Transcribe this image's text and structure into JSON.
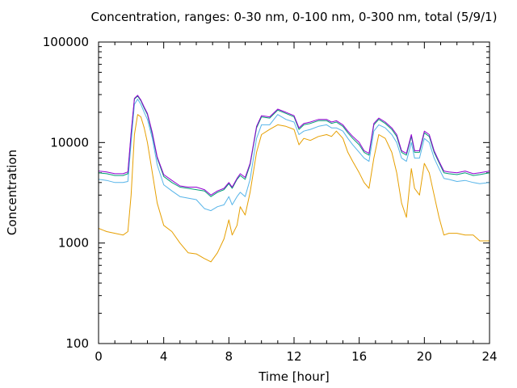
{
  "chart_data": {
    "type": "line",
    "title": "Concentration, ranges: 0-30 nm, 0-100 nm, 0-300 nm, total (5/9/1)",
    "xlabel": "Time [hour]",
    "ylabel": "Concentration",
    "xlim": [
      0,
      24
    ],
    "ylim": [
      100,
      100000
    ],
    "yscale": "log",
    "xticks": [
      "0",
      "4",
      "8",
      "12",
      "16",
      "20",
      "24"
    ],
    "yticks": [
      "100",
      "1000",
      "10000",
      "100000"
    ],
    "grid": false,
    "legend": "none",
    "series": [
      {
        "color": "#e69f00",
        "points": [
          [
            0,
            1400
          ],
          [
            0.5,
            1300
          ],
          [
            1,
            1250
          ],
          [
            1.5,
            1200
          ],
          [
            1.8,
            1300
          ],
          [
            2,
            3000
          ],
          [
            2.2,
            12000
          ],
          [
            2.4,
            19000
          ],
          [
            2.6,
            18000
          ],
          [
            2.8,
            14000
          ],
          [
            3,
            10000
          ],
          [
            3.3,
            5000
          ],
          [
            3.6,
            2500
          ],
          [
            4,
            1500
          ],
          [
            4.5,
            1300
          ],
          [
            5,
            1000
          ],
          [
            5.5,
            800
          ],
          [
            6,
            780
          ],
          [
            6.5,
            700
          ],
          [
            6.9,
            650
          ],
          [
            7.3,
            800
          ],
          [
            7.7,
            1100
          ],
          [
            8,
            1700
          ],
          [
            8.2,
            1200
          ],
          [
            8.5,
            1500
          ],
          [
            8.7,
            2300
          ],
          [
            9,
            1900
          ],
          [
            9.3,
            3200
          ],
          [
            9.7,
            8000
          ],
          [
            10,
            12000
          ],
          [
            10.5,
            13500
          ],
          [
            11,
            15000
          ],
          [
            11.5,
            14500
          ],
          [
            12,
            13500
          ],
          [
            12.3,
            9500
          ],
          [
            12.6,
            11000
          ],
          [
            13,
            10500
          ],
          [
            13.5,
            11500
          ],
          [
            14,
            12000
          ],
          [
            14.3,
            11500
          ],
          [
            14.6,
            13000
          ],
          [
            15,
            11000
          ],
          [
            15.3,
            8000
          ],
          [
            15.6,
            6500
          ],
          [
            16,
            5000
          ],
          [
            16.3,
            4000
          ],
          [
            16.6,
            3500
          ],
          [
            16.9,
            7000
          ],
          [
            17.2,
            12000
          ],
          [
            17.6,
            11000
          ],
          [
            18,
            8000
          ],
          [
            18.3,
            5000
          ],
          [
            18.6,
            2500
          ],
          [
            18.9,
            1800
          ],
          [
            19.2,
            5500
          ],
          [
            19.4,
            3500
          ],
          [
            19.7,
            3000
          ],
          [
            20,
            6200
          ],
          [
            20.3,
            5000
          ],
          [
            20.6,
            3000
          ],
          [
            20.9,
            1800
          ],
          [
            21.2,
            1200
          ],
          [
            21.5,
            1250
          ],
          [
            22,
            1250
          ],
          [
            22.5,
            1200
          ],
          [
            23,
            1200
          ],
          [
            23.4,
            1050
          ],
          [
            24,
            1050
          ]
        ]
      },
      {
        "color": "#56b4e9",
        "points": [
          [
            0,
            4300
          ],
          [
            0.5,
            4200
          ],
          [
            1,
            4000
          ],
          [
            1.5,
            4000
          ],
          [
            1.8,
            4100
          ],
          [
            2,
            10000
          ],
          [
            2.2,
            24000
          ],
          [
            2.4,
            27000
          ],
          [
            2.6,
            24000
          ],
          [
            2.8,
            20000
          ],
          [
            3,
            17000
          ],
          [
            3.3,
            11000
          ],
          [
            3.6,
            6000
          ],
          [
            4,
            3800
          ],
          [
            4.5,
            3300
          ],
          [
            5,
            2900
          ],
          [
            5.5,
            2800
          ],
          [
            6,
            2700
          ],
          [
            6.5,
            2200
          ],
          [
            6.9,
            2100
          ],
          [
            7.3,
            2300
          ],
          [
            7.7,
            2400
          ],
          [
            8,
            2900
          ],
          [
            8.2,
            2400
          ],
          [
            8.5,
            2900
          ],
          [
            8.7,
            3200
          ],
          [
            9,
            2900
          ],
          [
            9.3,
            4300
          ],
          [
            9.7,
            11000
          ],
          [
            10,
            15000
          ],
          [
            10.5,
            15000
          ],
          [
            11,
            19000
          ],
          [
            11.5,
            17000
          ],
          [
            12,
            16000
          ],
          [
            12.3,
            12000
          ],
          [
            12.6,
            13000
          ],
          [
            13,
            13500
          ],
          [
            13.5,
            14500
          ],
          [
            14,
            15000
          ],
          [
            14.3,
            14000
          ],
          [
            14.6,
            14000
          ],
          [
            15,
            13000
          ],
          [
            15.3,
            11000
          ],
          [
            15.6,
            9500
          ],
          [
            16,
            8000
          ],
          [
            16.3,
            7000
          ],
          [
            16.6,
            6500
          ],
          [
            16.9,
            13000
          ],
          [
            17.2,
            15000
          ],
          [
            17.6,
            14000
          ],
          [
            18,
            12000
          ],
          [
            18.3,
            10000
          ],
          [
            18.6,
            7000
          ],
          [
            18.9,
            6500
          ],
          [
            19.2,
            10000
          ],
          [
            19.4,
            7000
          ],
          [
            19.7,
            7000
          ],
          [
            20,
            11000
          ],
          [
            20.3,
            10000
          ],
          [
            20.6,
            7000
          ],
          [
            20.9,
            5500
          ],
          [
            21.2,
            4400
          ],
          [
            21.5,
            4300
          ],
          [
            22,
            4100
          ],
          [
            22.5,
            4200
          ],
          [
            23,
            4000
          ],
          [
            23.4,
            3900
          ],
          [
            24,
            4000
          ]
        ]
      },
      {
        "color": "#009e73",
        "points": [
          [
            0,
            5000
          ],
          [
            0.5,
            4900
          ],
          [
            1,
            4700
          ],
          [
            1.5,
            4700
          ],
          [
            1.8,
            4900
          ],
          [
            2,
            12000
          ],
          [
            2.2,
            27000
          ],
          [
            2.4,
            29000
          ],
          [
            2.6,
            26000
          ],
          [
            2.8,
            22000
          ],
          [
            3,
            19000
          ],
          [
            3.3,
            12000
          ],
          [
            3.6,
            7000
          ],
          [
            4,
            4600
          ],
          [
            4.5,
            4000
          ],
          [
            5,
            3600
          ],
          [
            5.5,
            3500
          ],
          [
            6,
            3400
          ],
          [
            6.5,
            3300
          ],
          [
            6.9,
            2900
          ],
          [
            7.3,
            3200
          ],
          [
            7.7,
            3400
          ],
          [
            8,
            3900
          ],
          [
            8.2,
            3500
          ],
          [
            8.5,
            4300
          ],
          [
            8.7,
            4700
          ],
          [
            9,
            4300
          ],
          [
            9.3,
            6000
          ],
          [
            9.7,
            14000
          ],
          [
            10,
            18000
          ],
          [
            10.5,
            17500
          ],
          [
            11,
            21000
          ],
          [
            11.5,
            19500
          ],
          [
            12,
            18000
          ],
          [
            12.3,
            13500
          ],
          [
            12.6,
            15000
          ],
          [
            13,
            15500
          ],
          [
            13.5,
            16500
          ],
          [
            14,
            16500
          ],
          [
            14.3,
            15500
          ],
          [
            14.6,
            16000
          ],
          [
            15,
            14500
          ],
          [
            15.3,
            12500
          ],
          [
            15.6,
            11000
          ],
          [
            16,
            9500
          ],
          [
            16.3,
            8000
          ],
          [
            16.6,
            7500
          ],
          [
            16.9,
            15000
          ],
          [
            17.2,
            17000
          ],
          [
            17.6,
            15500
          ],
          [
            18,
            13500
          ],
          [
            18.3,
            11500
          ],
          [
            18.6,
            8000
          ],
          [
            18.9,
            7500
          ],
          [
            19.2,
            11500
          ],
          [
            19.4,
            8000
          ],
          [
            19.7,
            8000
          ],
          [
            20,
            12500
          ],
          [
            20.3,
            11500
          ],
          [
            20.6,
            8000
          ],
          [
            20.9,
            6300
          ],
          [
            21.2,
            5000
          ],
          [
            21.5,
            4900
          ],
          [
            22,
            4800
          ],
          [
            22.5,
            5000
          ],
          [
            23,
            4700
          ],
          [
            23.4,
            4800
          ],
          [
            24,
            5000
          ]
        ]
      },
      {
        "color": "#9400d3",
        "points": [
          [
            0,
            5200
          ],
          [
            0.5,
            5100
          ],
          [
            1,
            4900
          ],
          [
            1.5,
            4900
          ],
          [
            1.8,
            5100
          ],
          [
            2,
            12500
          ],
          [
            2.2,
            27500
          ],
          [
            2.4,
            29500
          ],
          [
            2.6,
            26500
          ],
          [
            2.8,
            22500
          ],
          [
            3,
            19500
          ],
          [
            3.3,
            12500
          ],
          [
            3.6,
            7200
          ],
          [
            4,
            4800
          ],
          [
            4.5,
            4200
          ],
          [
            5,
            3700
          ],
          [
            5.5,
            3600
          ],
          [
            6,
            3600
          ],
          [
            6.5,
            3400
          ],
          [
            6.9,
            3000
          ],
          [
            7.3,
            3300
          ],
          [
            7.7,
            3500
          ],
          [
            8,
            4000
          ],
          [
            8.2,
            3600
          ],
          [
            8.5,
            4400
          ],
          [
            8.7,
            4900
          ],
          [
            9,
            4500
          ],
          [
            9.3,
            6200
          ],
          [
            9.7,
            14500
          ],
          [
            10,
            18500
          ],
          [
            10.5,
            18000
          ],
          [
            11,
            21500
          ],
          [
            11.5,
            20000
          ],
          [
            12,
            18500
          ],
          [
            12.3,
            14000
          ],
          [
            12.6,
            15500
          ],
          [
            13,
            16000
          ],
          [
            13.5,
            17000
          ],
          [
            14,
            17000
          ],
          [
            14.3,
            16000
          ],
          [
            14.6,
            16500
          ],
          [
            15,
            15000
          ],
          [
            15.3,
            13000
          ],
          [
            15.6,
            11500
          ],
          [
            16,
            10000
          ],
          [
            16.3,
            8300
          ],
          [
            16.6,
            7800
          ],
          [
            16.9,
            15500
          ],
          [
            17.2,
            17500
          ],
          [
            17.6,
            16000
          ],
          [
            18,
            14000
          ],
          [
            18.3,
            12000
          ],
          [
            18.6,
            8300
          ],
          [
            18.9,
            7800
          ],
          [
            19.2,
            12000
          ],
          [
            19.4,
            8300
          ],
          [
            19.7,
            8300
          ],
          [
            20,
            13000
          ],
          [
            20.3,
            12000
          ],
          [
            20.6,
            8300
          ],
          [
            20.9,
            6500
          ],
          [
            21.2,
            5200
          ],
          [
            21.5,
            5100
          ],
          [
            22,
            5000
          ],
          [
            22.5,
            5200
          ],
          [
            23,
            4900
          ],
          [
            23.4,
            5000
          ],
          [
            24,
            5200
          ]
        ]
      }
    ]
  }
}
